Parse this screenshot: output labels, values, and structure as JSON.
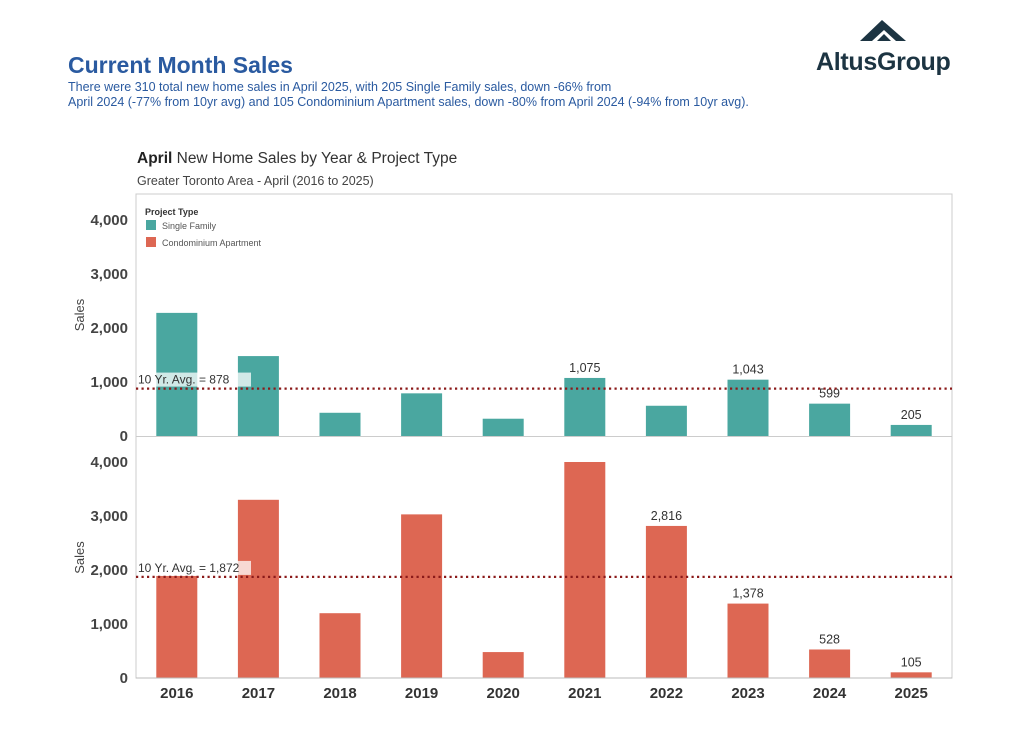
{
  "header": {
    "title": "Current Month Sales",
    "summary_line1": "There were 310 total new home sales in April 2025, with 205 Single Family sales, down -66% from",
    "summary_line2": "April 2024 (-77% from 10yr avg) and 105 Condominium Apartment sales, down -80% from April 2024 (-94% from 10yr avg).",
    "logo_text": "AltusGroup"
  },
  "chart": {
    "title_highlight": "April",
    "title_rest": " New Home Sales by Year & Project Type",
    "subtitle": "Greater Toronto Area - April (2016 to 2025)"
  },
  "colors": {
    "single_family": "#4aa7a0",
    "condo": "#dd6753",
    "avg_line": "#8b1a1a",
    "title_blue": "#2a5aa0",
    "logo": "#1c3442"
  },
  "chart_data": {
    "type": "bar",
    "categories": [
      "2016",
      "2017",
      "2018",
      "2019",
      "2020",
      "2021",
      "2022",
      "2023",
      "2024",
      "2025"
    ],
    "legend_title": "Project Type",
    "legend_placement": "top-left",
    "ylabel": "Sales",
    "grid": false,
    "panels": [
      {
        "name": "Single Family",
        "values": [
          2280,
          1480,
          430,
          790,
          320,
          1075,
          560,
          1043,
          599,
          205
        ],
        "labels": [
          "",
          "",
          "",
          "",
          "",
          "1,075",
          "",
          "1,043",
          "599",
          "205"
        ],
        "avg_value": 878,
        "avg_label": "10 Yr. Avg. = 878",
        "ylim": [
          0,
          4400
        ],
        "yticks": [
          0,
          1000,
          2000,
          3000,
          4000
        ],
        "ytick_labels": [
          "0",
          "1,000",
          "2,000",
          "3,000",
          "4,000"
        ]
      },
      {
        "name": "Condominium Apartment",
        "values": [
          1890,
          3300,
          1200,
          3030,
          480,
          4000,
          2816,
          1378,
          528,
          105
        ],
        "labels": [
          "",
          "",
          "",
          "",
          "",
          "",
          "2,816",
          "1,378",
          "528",
          "105"
        ],
        "avg_value": 1872,
        "avg_label": "10 Yr. Avg. = 1,872",
        "ylim": [
          0,
          4400
        ],
        "yticks": [
          0,
          1000,
          2000,
          3000,
          4000
        ],
        "ytick_labels": [
          "0",
          "1,000",
          "2,000",
          "3,000",
          "4,000"
        ]
      }
    ]
  }
}
